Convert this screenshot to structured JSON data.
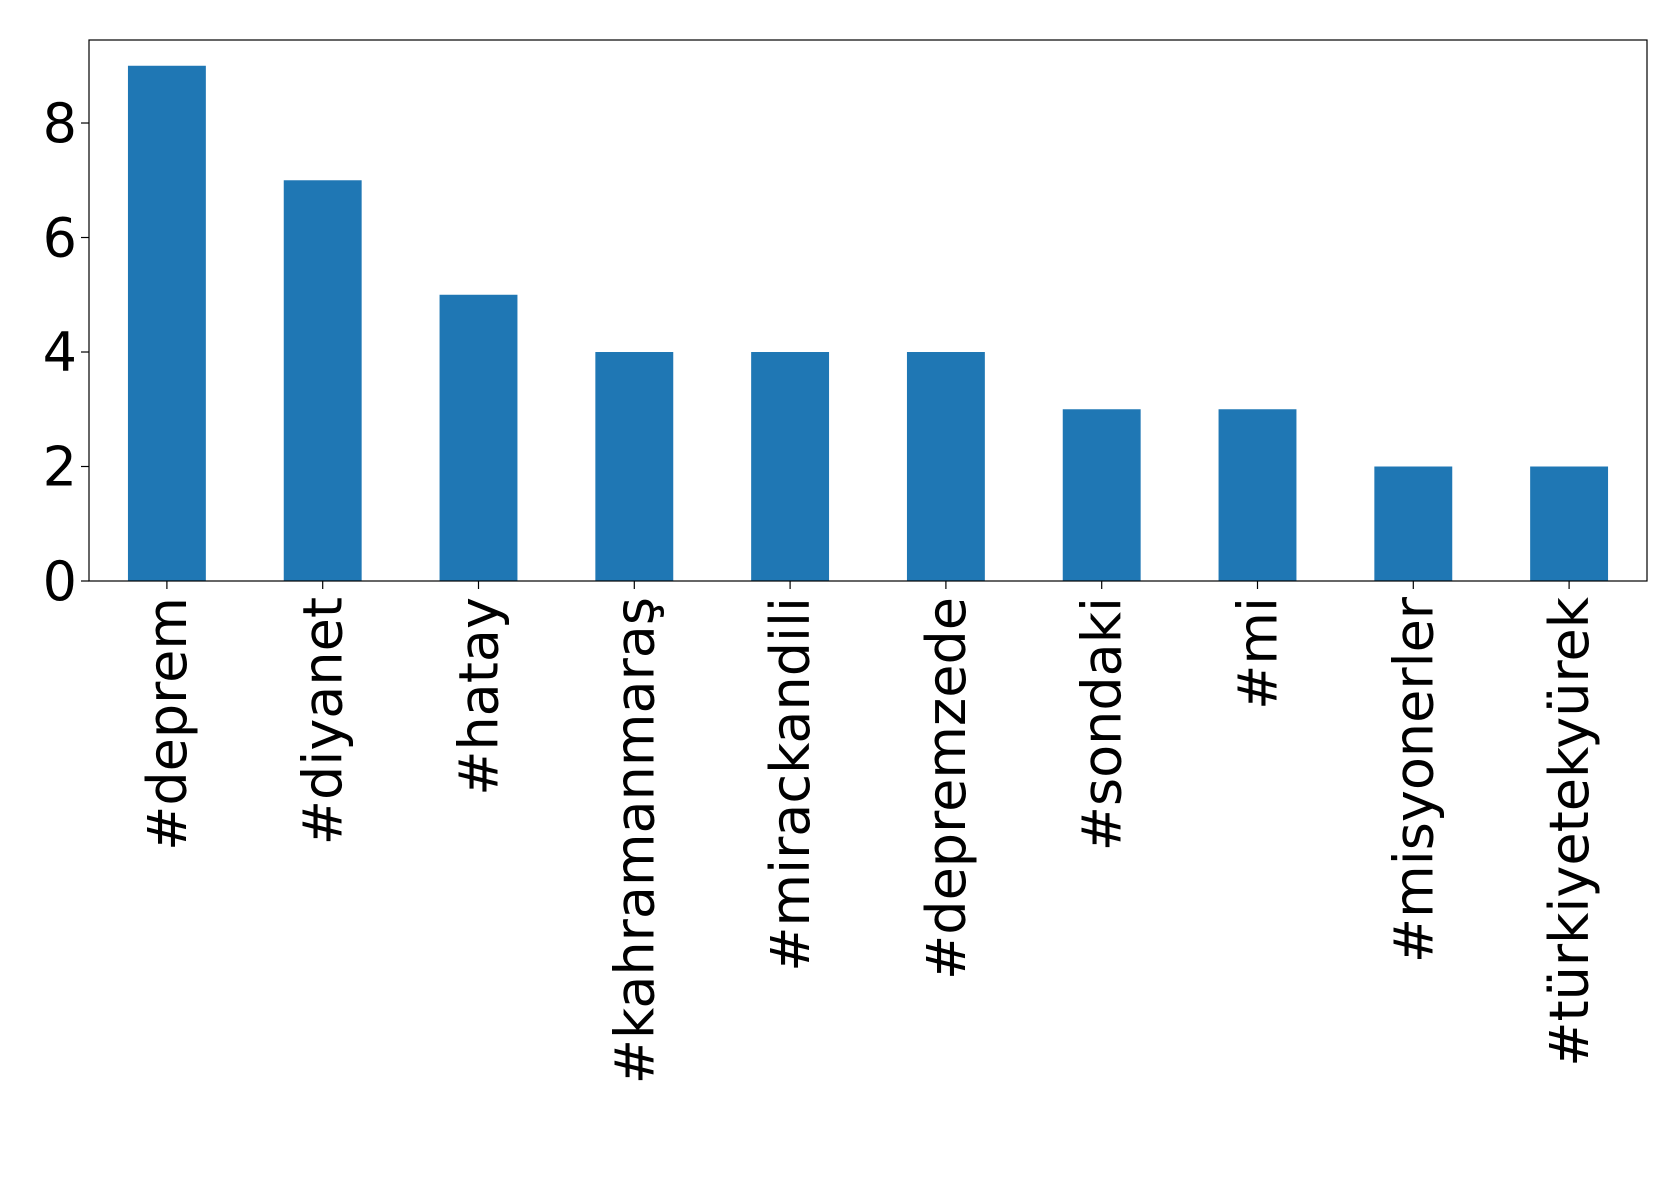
{
  "chart_data": {
    "type": "bar",
    "categories": [
      "#deprem",
      "#diyanet",
      "#hatay",
      "#kahramanmaraş",
      "#mirackandili",
      "#depremzede",
      "#sondaki",
      "#mi",
      "#misyonerler",
      "#türkiyetekyürek"
    ],
    "values": [
      9,
      7,
      5,
      4,
      4,
      4,
      3,
      3,
      2,
      2
    ],
    "color": "#1f77b4",
    "ylim": [
      0,
      9.45
    ],
    "yticks": [
      0,
      2,
      4,
      6,
      8
    ],
    "grid": false
  }
}
